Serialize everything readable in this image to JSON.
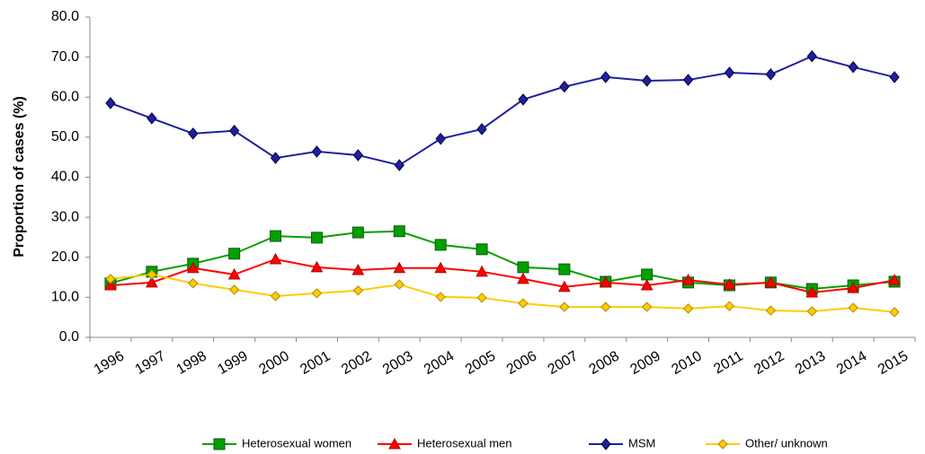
{
  "chart_data": {
    "type": "line",
    "y_label": "Proportion of cases (%)",
    "categories": [
      "1996",
      "1997",
      "1998",
      "1999",
      "2000",
      "2001",
      "2002",
      "2003",
      "2004",
      "2005",
      "2006",
      "2007",
      "2008",
      "2009",
      "2010",
      "2011",
      "2012",
      "2013",
      "2014",
      "2015"
    ],
    "series": [
      {
        "name": "Heterosexual women",
        "color": "#00a000",
        "marker": "square",
        "values": [
          13.5,
          16.4,
          18.4,
          20.9,
          25.3,
          24.9,
          26.2,
          26.5,
          23.1,
          22.0,
          17.5,
          17.0,
          13.9,
          15.7,
          13.7,
          13.0,
          13.7,
          12.1,
          13.0,
          13.9
        ]
      },
      {
        "name": "Heterosexual men",
        "color": "#ff0000",
        "marker": "triangle",
        "values": [
          13.0,
          13.7,
          17.3,
          15.7,
          19.5,
          17.5,
          16.8,
          17.3,
          17.3,
          16.4,
          14.6,
          12.6,
          13.7,
          13.0,
          14.3,
          13.2,
          13.7,
          11.2,
          12.3,
          14.3
        ]
      },
      {
        "name": "MSM",
        "color": "#1f1f9f",
        "marker": "diamond",
        "values": [
          58.5,
          54.7,
          50.9,
          51.6,
          44.8,
          46.4,
          45.5,
          43.0,
          49.6,
          52.0,
          59.4,
          62.6,
          65.0,
          64.1,
          64.3,
          66.1,
          65.7,
          70.2,
          67.5,
          65.0
        ]
      },
      {
        "name": "Other/ unknown",
        "color": "#ffcc00",
        "marker": "small-diamond",
        "values": [
          14.6,
          15.7,
          13.5,
          11.9,
          10.3,
          11.0,
          11.7,
          13.2,
          10.1,
          9.9,
          8.5,
          7.6,
          7.6,
          7.6,
          7.2,
          7.8,
          6.7,
          6.5,
          7.4,
          6.3
        ]
      }
    ],
    "ylim": [
      0,
      80
    ],
    "yticks": [
      {
        "value": 0,
        "label": "0.0"
      },
      {
        "value": 10,
        "label": "10.0"
      },
      {
        "value": 20,
        "label": "20.0"
      },
      {
        "value": 30,
        "label": "30.0"
      },
      {
        "value": 40,
        "label": "40.0"
      },
      {
        "value": 50,
        "label": "50.0"
      },
      {
        "value": 60,
        "label": "60.0"
      },
      {
        "value": 70,
        "label": "70.0"
      },
      {
        "value": 80,
        "label": "80.0"
      }
    ],
    "legend": "bottom"
  }
}
